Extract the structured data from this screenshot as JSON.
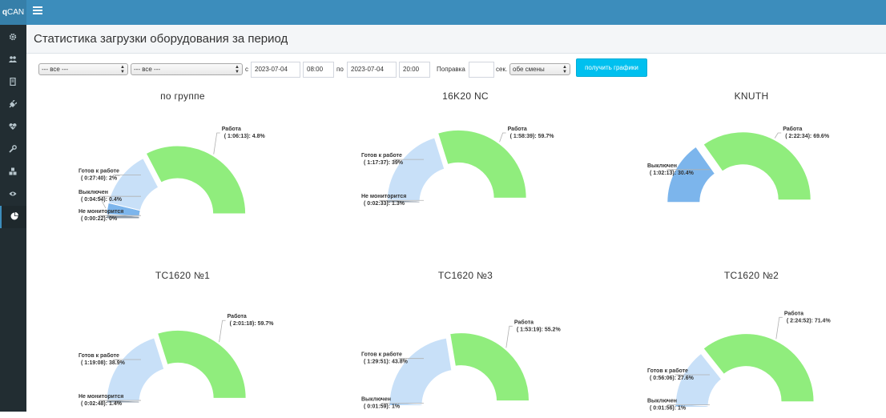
{
  "app": {
    "logo_bold": "q",
    "logo_rest": "CAN"
  },
  "sidebar": {
    "items": [
      {
        "icon": "gear-icon"
      },
      {
        "icon": "users-icon"
      },
      {
        "icon": "document-icon"
      },
      {
        "icon": "plug-icon"
      },
      {
        "icon": "heartbeat-icon"
      },
      {
        "icon": "wrench-icon"
      },
      {
        "icon": "cubes-icon"
      },
      {
        "icon": "eye-icon"
      },
      {
        "icon": "pie-chart-icon",
        "active": true
      }
    ]
  },
  "page": {
    "title": "Статистика загрузки оборудования за период"
  },
  "filters": {
    "group_select": "--- все ---",
    "machine_select": "--- все ---",
    "from_label": "с",
    "date_from": "2023-07-04",
    "time_from": "08:00",
    "to_label": "по",
    "date_to": "2023-07-04",
    "time_to": "20:00",
    "correction_label": "Поправка",
    "correction_value": "",
    "sec_label": "сек.",
    "shift_select": "обе смены",
    "submit_label": "получить графики"
  },
  "colors": {
    "work": "#90ed7d",
    "ready": "#c8e0f8",
    "off": "#7cb5ec",
    "not_monitored": "#8c9aa8",
    "header": "#3c8dbc",
    "sidebar": "#222d32",
    "button": "#00c0ef"
  },
  "chart_data": [
    {
      "type": "pie",
      "title": "по группе",
      "slices": [
        {
          "name": "Не мониторится",
          "time": "( 0:00:22)",
          "percent": 0,
          "label": "( 0:00:22): 0%",
          "color": "not_monitored"
        },
        {
          "name": "Выключен",
          "time": "( 0:04:54)",
          "percent": 0.4,
          "label": "( 0:04:54): 0.4%",
          "color": "off"
        },
        {
          "name": "Готов к работе",
          "time": "( 0:27:40)",
          "percent": 2,
          "label": "( 0:27:40): 2%",
          "color": "ready"
        },
        {
          "name": "Работа",
          "time": "( 1:06:13)",
          "percent": 4.8,
          "label": "( 1:06:13): 4.8%",
          "color": "work"
        }
      ]
    },
    {
      "type": "pie",
      "title": "16K20 NC",
      "slices": [
        {
          "name": "Не мониторится",
          "time": "( 0:02:33)",
          "percent": 1.3,
          "label": "( 0:02:33): 1.3%",
          "color": "not_monitored"
        },
        {
          "name": "Готов к работе",
          "time": "( 1:17:37)",
          "percent": 39,
          "label": "( 1:17:37): 39%",
          "color": "ready"
        },
        {
          "name": "Работа",
          "time": "( 1:58:39)",
          "percent": 59.7,
          "label": "( 1:58:39): 59.7%",
          "color": "work"
        }
      ]
    },
    {
      "type": "pie",
      "title": "KNUTH",
      "slices": [
        {
          "name": "Выключен",
          "time": "( 1:02:13)",
          "percent": 30.4,
          "label": "( 1:02:13): 30.4%",
          "color": "off"
        },
        {
          "name": "Работа",
          "time": "( 2:22:34)",
          "percent": 69.6,
          "label": "( 2:22:34): 69.6%",
          "color": "work"
        }
      ]
    },
    {
      "type": "pie",
      "title": "TC1620 №1",
      "slices": [
        {
          "name": "Не мониторится",
          "time": "( 0:02:48)",
          "percent": 1.4,
          "label": "( 0:02:48): 1.4%",
          "color": "not_monitored"
        },
        {
          "name": "Готов к работе",
          "time": "( 1:19:08)",
          "percent": 38.9,
          "label": "( 1:19:08): 38.9%",
          "color": "ready"
        },
        {
          "name": "Работа",
          "time": "( 2:01:18)",
          "percent": 59.7,
          "label": "( 2:01:18): 59.7%",
          "color": "work"
        }
      ]
    },
    {
      "type": "pie",
      "title": "TC1620 №3",
      "slices": [
        {
          "name": "Выключен",
          "time": "( 0:01:59)",
          "percent": 1,
          "label": "( 0:01:59): 1%",
          "color": "off"
        },
        {
          "name": "Готов к работе",
          "time": "( 1:29:51)",
          "percent": 43.8,
          "label": "( 1:29:51): 43.8%",
          "color": "ready"
        },
        {
          "name": "Работа",
          "time": "( 1:53:19)",
          "percent": 55.2,
          "label": "( 1:53:19): 55.2%",
          "color": "work"
        }
      ]
    },
    {
      "type": "pie",
      "title": "TC1620 №2",
      "slices": [
        {
          "name": "Выключен",
          "time": "( 0:01:56)",
          "percent": 1,
          "label": "( 0:01:56): 1%",
          "color": "off"
        },
        {
          "name": "Готов к работе",
          "time": "( 0:56:06)",
          "percent": 27.6,
          "label": "( 0:56:06): 27.6%",
          "color": "ready"
        },
        {
          "name": "Работа",
          "time": "( 2:24:52)",
          "percent": 71.4,
          "label": "( 2:24:52): 71.4%",
          "color": "work"
        }
      ]
    }
  ]
}
